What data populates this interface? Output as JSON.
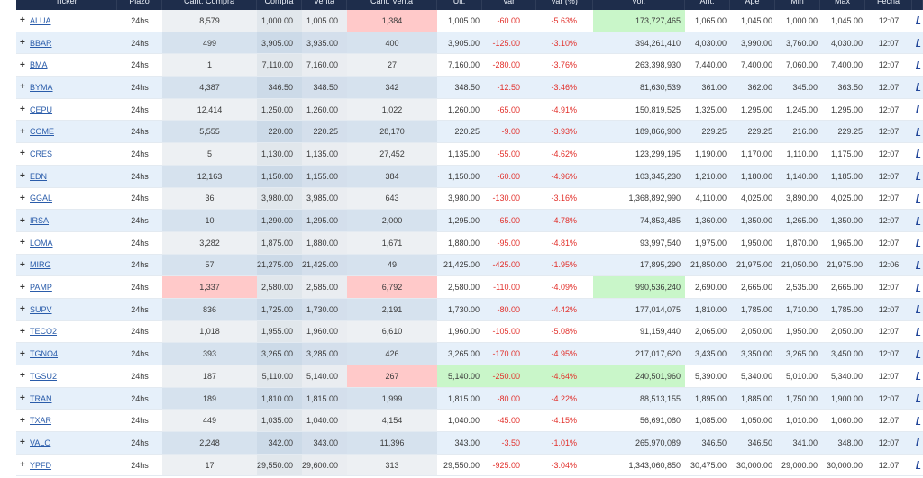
{
  "colors": {
    "header_bg": "#1e2d4b",
    "row_alt_bg": "#e6f0fa",
    "link": "#2a5caa",
    "negative": "#e2302b"
  },
  "icons": {
    "expand": "plus-icon",
    "row_link": "chart-link-icon"
  },
  "table": {
    "expand_label": "+",
    "columns": [
      {
        "key": "ticker",
        "label": "Ticker"
      },
      {
        "key": "plazo",
        "label": "Plazo"
      },
      {
        "key": "cant_compra",
        "label": "Cant. Compra"
      },
      {
        "key": "compra",
        "label": "Compra"
      },
      {
        "key": "venta",
        "label": "Venta"
      },
      {
        "key": "cant_venta",
        "label": "Cant. Venta"
      },
      {
        "key": "ult",
        "label": "Ult."
      },
      {
        "key": "var",
        "label": "Var"
      },
      {
        "key": "var_pct",
        "label": "Var (%)"
      },
      {
        "key": "vol",
        "label": "Vol."
      },
      {
        "key": "ant",
        "label": "Ant."
      },
      {
        "key": "ape",
        "label": "Ape"
      },
      {
        "key": "min",
        "label": "Min"
      },
      {
        "key": "max",
        "label": "Max"
      },
      {
        "key": "fecha",
        "label": "Fecha"
      }
    ],
    "rows": [
      {
        "ticker": "ALUA",
        "plazo": "24hs",
        "cant_compra": "8,579",
        "compra": "1,000.00",
        "venta": "1,005.00",
        "cant_venta": "1,384",
        "ult": "1,005.00",
        "var": "-60.00",
        "var_pct": "-5.63%",
        "vol": "173,727,465",
        "ant": "1,065.00",
        "ape": "1,045.00",
        "min": "1,000.00",
        "max": "1,045.00",
        "fecha": "12:07",
        "flash": {
          "cant_venta": "#ffc9c9",
          "vol": "#c9f6c9"
        }
      },
      {
        "ticker": "BBAR",
        "plazo": "24hs",
        "cant_compra": "499",
        "compra": "3,905.00",
        "venta": "3,935.00",
        "cant_venta": "400",
        "ult": "3,905.00",
        "var": "-125.00",
        "var_pct": "-3.10%",
        "vol": "394,261,410",
        "ant": "4,030.00",
        "ape": "3,990.00",
        "min": "3,760.00",
        "max": "4,030.00",
        "fecha": "12:07"
      },
      {
        "ticker": "BMA",
        "plazo": "24hs",
        "cant_compra": "1",
        "compra": "7,110.00",
        "venta": "7,160.00",
        "cant_venta": "27",
        "ult": "7,160.00",
        "var": "-280.00",
        "var_pct": "-3.76%",
        "vol": "263,398,930",
        "ant": "7,440.00",
        "ape": "7,400.00",
        "min": "7,060.00",
        "max": "7,400.00",
        "fecha": "12:07"
      },
      {
        "ticker": "BYMA",
        "plazo": "24hs",
        "cant_compra": "4,387",
        "compra": "346.50",
        "venta": "348.50",
        "cant_venta": "342",
        "ult": "348.50",
        "var": "-12.50",
        "var_pct": "-3.46%",
        "vol": "81,630,539",
        "ant": "361.00",
        "ape": "362.00",
        "min": "345.00",
        "max": "363.50",
        "fecha": "12:07"
      },
      {
        "ticker": "CEPU",
        "plazo": "24hs",
        "cant_compra": "12,414",
        "compra": "1,250.00",
        "venta": "1,260.00",
        "cant_venta": "1,022",
        "ult": "1,260.00",
        "var": "-65.00",
        "var_pct": "-4.91%",
        "vol": "150,819,525",
        "ant": "1,325.00",
        "ape": "1,295.00",
        "min": "1,245.00",
        "max": "1,295.00",
        "fecha": "12:07"
      },
      {
        "ticker": "COME",
        "plazo": "24hs",
        "cant_compra": "5,555",
        "compra": "220.00",
        "venta": "220.25",
        "cant_venta": "28,170",
        "ult": "220.25",
        "var": "-9.00",
        "var_pct": "-3.93%",
        "vol": "189,866,900",
        "ant": "229.25",
        "ape": "229.25",
        "min": "216.00",
        "max": "229.25",
        "fecha": "12:07"
      },
      {
        "ticker": "CRES",
        "plazo": "24hs",
        "cant_compra": "5",
        "compra": "1,130.00",
        "venta": "1,135.00",
        "cant_venta": "27,452",
        "ult": "1,135.00",
        "var": "-55.00",
        "var_pct": "-4.62%",
        "vol": "123,299,195",
        "ant": "1,190.00",
        "ape": "1,170.00",
        "min": "1,110.00",
        "max": "1,175.00",
        "fecha": "12:07"
      },
      {
        "ticker": "EDN",
        "plazo": "24hs",
        "cant_compra": "12,163",
        "compra": "1,150.00",
        "venta": "1,155.00",
        "cant_venta": "384",
        "ult": "1,150.00",
        "var": "-60.00",
        "var_pct": "-4.96%",
        "vol": "103,345,230",
        "ant": "1,210.00",
        "ape": "1,180.00",
        "min": "1,140.00",
        "max": "1,185.00",
        "fecha": "12:07"
      },
      {
        "ticker": "GGAL",
        "plazo": "24hs",
        "cant_compra": "36",
        "compra": "3,980.00",
        "venta": "3,985.00",
        "cant_venta": "643",
        "ult": "3,980.00",
        "var": "-130.00",
        "var_pct": "-3.16%",
        "vol": "1,368,892,990",
        "ant": "4,110.00",
        "ape": "4,025.00",
        "min": "3,890.00",
        "max": "4,025.00",
        "fecha": "12:07"
      },
      {
        "ticker": "IRSA",
        "plazo": "24hs",
        "cant_compra": "10",
        "compra": "1,290.00",
        "venta": "1,295.00",
        "cant_venta": "2,000",
        "ult": "1,295.00",
        "var": "-65.00",
        "var_pct": "-4.78%",
        "vol": "74,853,485",
        "ant": "1,360.00",
        "ape": "1,350.00",
        "min": "1,265.00",
        "max": "1,350.00",
        "fecha": "12:07"
      },
      {
        "ticker": "LOMA",
        "plazo": "24hs",
        "cant_compra": "3,282",
        "compra": "1,875.00",
        "venta": "1,880.00",
        "cant_venta": "1,671",
        "ult": "1,880.00",
        "var": "-95.00",
        "var_pct": "-4.81%",
        "vol": "93,997,540",
        "ant": "1,975.00",
        "ape": "1,950.00",
        "min": "1,870.00",
        "max": "1,965.00",
        "fecha": "12:07"
      },
      {
        "ticker": "MIRG",
        "plazo": "24hs",
        "cant_compra": "57",
        "compra": "21,275.00",
        "venta": "21,425.00",
        "cant_venta": "49",
        "ult": "21,425.00",
        "var": "-425.00",
        "var_pct": "-1.95%",
        "vol": "17,895,290",
        "ant": "21,850.00",
        "ape": "21,975.00",
        "min": "21,050.00",
        "max": "21,975.00",
        "fecha": "12:06"
      },
      {
        "ticker": "PAMP",
        "plazo": "24hs",
        "cant_compra": "1,337",
        "compra": "2,580.00",
        "venta": "2,585.00",
        "cant_venta": "6,792",
        "ult": "2,580.00",
        "var": "-110.00",
        "var_pct": "-4.09%",
        "vol": "990,536,240",
        "ant": "2,690.00",
        "ape": "2,665.00",
        "min": "2,535.00",
        "max": "2,665.00",
        "fecha": "12:07",
        "flash": {
          "cant_compra": "#ffc9c9",
          "cant_venta": "#ffc9c9",
          "vol": "#c9f6c9"
        }
      },
      {
        "ticker": "SUPV",
        "plazo": "24hs",
        "cant_compra": "836",
        "compra": "1,725.00",
        "venta": "1,730.00",
        "cant_venta": "2,191",
        "ult": "1,730.00",
        "var": "-80.00",
        "var_pct": "-4.42%",
        "vol": "177,014,075",
        "ant": "1,810.00",
        "ape": "1,785.00",
        "min": "1,710.00",
        "max": "1,785.00",
        "fecha": "12:07"
      },
      {
        "ticker": "TECO2",
        "plazo": "24hs",
        "cant_compra": "1,018",
        "compra": "1,955.00",
        "venta": "1,960.00",
        "cant_venta": "6,610",
        "ult": "1,960.00",
        "var": "-105.00",
        "var_pct": "-5.08%",
        "vol": "91,159,440",
        "ant": "2,065.00",
        "ape": "2,050.00",
        "min": "1,950.00",
        "max": "2,050.00",
        "fecha": "12:07"
      },
      {
        "ticker": "TGNO4",
        "plazo": "24hs",
        "cant_compra": "393",
        "compra": "3,265.00",
        "venta": "3,285.00",
        "cant_venta": "426",
        "ult": "3,265.00",
        "var": "-170.00",
        "var_pct": "-4.95%",
        "vol": "217,017,620",
        "ant": "3,435.00",
        "ape": "3,350.00",
        "min": "3,265.00",
        "max": "3,450.00",
        "fecha": "12:07"
      },
      {
        "ticker": "TGSU2",
        "plazo": "24hs",
        "cant_compra": "187",
        "compra": "5,110.00",
        "venta": "5,140.00",
        "cant_venta": "267",
        "ult": "5,140.00",
        "var": "-250.00",
        "var_pct": "-4.64%",
        "vol": "240,501,960",
        "ant": "5,390.00",
        "ape": "5,340.00",
        "min": "5,010.00",
        "max": "5,340.00",
        "fecha": "12:07",
        "flash": {
          "cant_venta": "#ffc9c9",
          "ult": "#c9f6c9",
          "var": "#c9f6c9",
          "var_pct": "#c9f6c9",
          "vol": "#c9f6c9"
        }
      },
      {
        "ticker": "TRAN",
        "plazo": "24hs",
        "cant_compra": "189",
        "compra": "1,810.00",
        "venta": "1,815.00",
        "cant_venta": "1,999",
        "ult": "1,815.00",
        "var": "-80.00",
        "var_pct": "-4.22%",
        "vol": "88,513,155",
        "ant": "1,895.00",
        "ape": "1,885.00",
        "min": "1,750.00",
        "max": "1,900.00",
        "fecha": "12:07"
      },
      {
        "ticker": "TXAR",
        "plazo": "24hs",
        "cant_compra": "449",
        "compra": "1,035.00",
        "venta": "1,040.00",
        "cant_venta": "4,154",
        "ult": "1,040.00",
        "var": "-45.00",
        "var_pct": "-4.15%",
        "vol": "56,691,080",
        "ant": "1,085.00",
        "ape": "1,050.00",
        "min": "1,010.00",
        "max": "1,060.00",
        "fecha": "12:07"
      },
      {
        "ticker": "VALO",
        "plazo": "24hs",
        "cant_compra": "2,248",
        "compra": "342.00",
        "venta": "343.00",
        "cant_venta": "11,396",
        "ult": "343.00",
        "var": "-3.50",
        "var_pct": "-1.01%",
        "vol": "265,970,089",
        "ant": "346.50",
        "ape": "346.50",
        "min": "341.00",
        "max": "348.00",
        "fecha": "12:07"
      },
      {
        "ticker": "YPFD",
        "plazo": "24hs",
        "cant_compra": "17",
        "compra": "29,550.00",
        "venta": "29,600.00",
        "cant_venta": "313",
        "ult": "29,550.00",
        "var": "-925.00",
        "var_pct": "-3.04%",
        "vol": "1,343,060,850",
        "ant": "30,475.00",
        "ape": "30,000.00",
        "min": "29,000.00",
        "max": "30,000.00",
        "fecha": "12:07"
      }
    ]
  }
}
